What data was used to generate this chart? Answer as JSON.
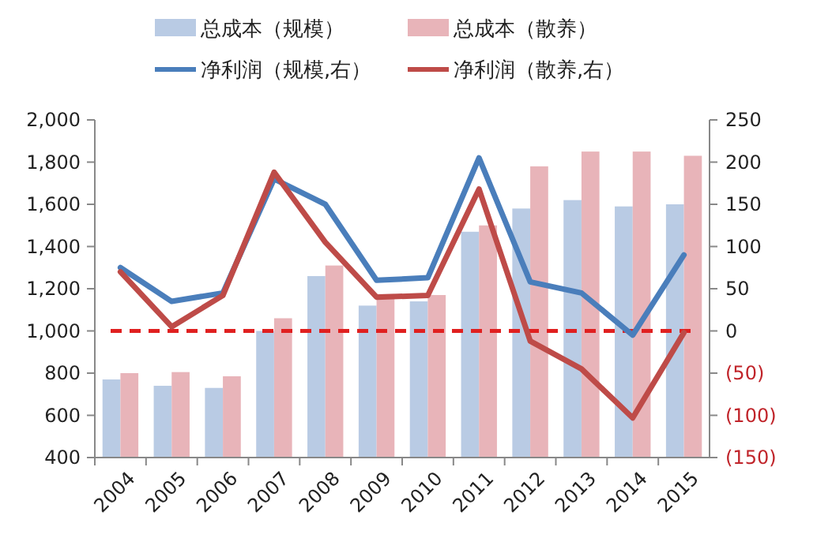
{
  "chart_data": {
    "type": "bar",
    "categories": [
      "2004",
      "2005",
      "2006",
      "2007",
      "2008",
      "2009",
      "2010",
      "2011",
      "2012",
      "2013",
      "2014",
      "2015"
    ],
    "series": [
      {
        "name": "总成本（规模）",
        "color": "#b9cbe4",
        "values": [
          770,
          740,
          730,
          1000,
          1260,
          1120,
          1140,
          1470,
          1580,
          1620,
          1590,
          1600
        ]
      },
      {
        "name": "总成本（散养）",
        "color": "#e8b4b9",
        "values": [
          800,
          805,
          785,
          1060,
          1310,
          1175,
          1170,
          1500,
          1780,
          1850,
          1850,
          1830
        ]
      },
      {
        "name": "净利润（规模,右）",
        "type": "line",
        "axis": "y2",
        "color": "#4a7ebb",
        "values": [
          75,
          35,
          45,
          180,
          150,
          60,
          63,
          205,
          58,
          45,
          -5,
          90
        ]
      },
      {
        "name": "净利润（散养,右）",
        "type": "line",
        "axis": "y2",
        "color": "#be4b48",
        "values": [
          70,
          5,
          42,
          188,
          105,
          40,
          42,
          168,
          -12,
          -45,
          -103,
          -2
        ]
      }
    ],
    "ylim": [
      400,
      2000
    ],
    "yticks": [
      {
        "value": 400,
        "label": "400"
      },
      {
        "value": 600,
        "label": "600"
      },
      {
        "value": 800,
        "label": "800"
      },
      {
        "value": 1000,
        "label": "1,000"
      },
      {
        "value": 1200,
        "label": "1,200"
      },
      {
        "value": 1400,
        "label": "1,400"
      },
      {
        "value": 1600,
        "label": "1,600"
      },
      {
        "value": 1800,
        "label": "1,800"
      },
      {
        "value": 2000,
        "label": "2,000"
      }
    ],
    "y2lim": [
      -150,
      250
    ],
    "y2ticks": [
      {
        "value": -150,
        "label": "(150)"
      },
      {
        "value": -100,
        "label": "(100)"
      },
      {
        "value": -50,
        "label": "(50)"
      },
      0,
      50,
      100,
      150,
      200,
      250
    ],
    "ref_lines": [
      {
        "axis": "y2",
        "value": 0,
        "color": "#e02020",
        "line_style": "dashed"
      }
    ],
    "legend": "top",
    "grid": false
  }
}
